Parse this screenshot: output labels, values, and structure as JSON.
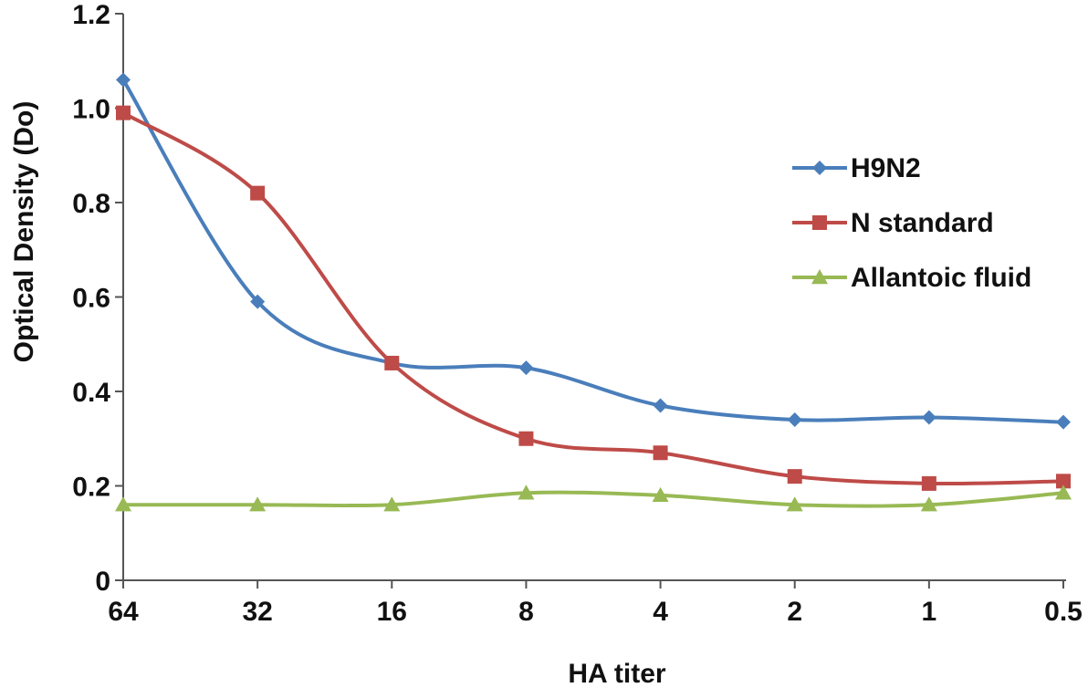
{
  "chart_data": {
    "type": "line",
    "title": "",
    "xlabel": "HA titer",
    "ylabel": "Optical Density (Do)",
    "categories": [
      "64",
      "32",
      "16",
      "8",
      "4",
      "2",
      "1",
      "0.5"
    ],
    "ylim": [
      0,
      1.2
    ],
    "yticks": [
      "0",
      "0.2",
      "0.4",
      "0.6",
      "0.8",
      "1.0",
      "1.2"
    ],
    "grid": false,
    "legend_position": "right",
    "smooth": true,
    "series": [
      {
        "name": "H9N2",
        "color": "#4a7ebb",
        "marker": "diamond",
        "values": [
          1.06,
          0.59,
          0.46,
          0.45,
          0.37,
          0.34,
          0.345,
          0.335
        ]
      },
      {
        "name": "N standard",
        "color": "#be4b48",
        "marker": "square",
        "values": [
          0.99,
          0.82,
          0.46,
          0.3,
          0.27,
          0.22,
          0.205,
          0.21
        ]
      },
      {
        "name": "Allantoic fluid",
        "color": "#98b954",
        "marker": "triangle",
        "values": [
          0.16,
          0.16,
          0.16,
          0.185,
          0.18,
          0.16,
          0.16,
          0.185
        ]
      }
    ]
  }
}
